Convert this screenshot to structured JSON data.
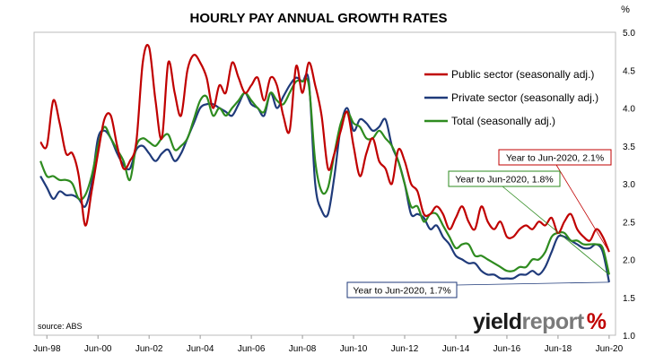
{
  "chart_data": {
    "type": "line",
    "title": "HOURLY PAY ANNUAL GROWTH RATES",
    "y_unit": "%",
    "source": "source: ABS",
    "logo": {
      "text_dark": "yield",
      "text_light": "report",
      "symbol": "%"
    },
    "xlim": [
      1998.0,
      2020.75
    ],
    "ylim": [
      1.0,
      5.0
    ],
    "x_ticks": [
      {
        "x": 1998.5,
        "label": "Jun-98"
      },
      {
        "x": 2000.5,
        "label": "Jun-00"
      },
      {
        "x": 2002.5,
        "label": "Jun-02"
      },
      {
        "x": 2004.5,
        "label": "Jun-04"
      },
      {
        "x": 2006.5,
        "label": "Jun-06"
      },
      {
        "x": 2008.5,
        "label": "Jun-08"
      },
      {
        "x": 2010.5,
        "label": "Jun-10"
      },
      {
        "x": 2012.5,
        "label": "Jun-12"
      },
      {
        "x": 2014.5,
        "label": "Jun-14"
      },
      {
        "x": 2016.5,
        "label": "Jun-16"
      },
      {
        "x": 2018.5,
        "label": "Jun-18"
      },
      {
        "x": 2020.5,
        "label": "Jun-20"
      }
    ],
    "y_ticks": [
      {
        "y": 1.0,
        "label": "1.0"
      },
      {
        "y": 1.5,
        "label": "1.5"
      },
      {
        "y": 2.0,
        "label": "2.0"
      },
      {
        "y": 2.5,
        "label": "2.5"
      },
      {
        "y": 3.0,
        "label": "3.0"
      },
      {
        "y": 3.5,
        "label": "3.5"
      },
      {
        "y": 4.0,
        "label": "4.0"
      },
      {
        "y": 4.5,
        "label": "4.5"
      },
      {
        "y": 5.0,
        "label": "5.0"
      }
    ],
    "grid": false,
    "legend_position": "top-right",
    "series": [
      {
        "name": "Public sector (seasonally adj.)",
        "color": "#c00000",
        "x": [
          1998.25,
          1998.5,
          1998.75,
          1999.0,
          1999.25,
          1999.5,
          1999.75,
          2000.0,
          2000.25,
          2000.5,
          2000.75,
          2001.0,
          2001.25,
          2001.5,
          2001.75,
          2002.0,
          2002.25,
          2002.5,
          2002.75,
          2003.0,
          2003.25,
          2003.5,
          2003.75,
          2004.0,
          2004.25,
          2004.5,
          2004.75,
          2005.0,
          2005.25,
          2005.5,
          2005.75,
          2006.0,
          2006.25,
          2006.5,
          2006.75,
          2007.0,
          2007.25,
          2007.5,
          2007.75,
          2008.0,
          2008.25,
          2008.5,
          2008.75,
          2009.0,
          2009.25,
          2009.5,
          2009.75,
          2010.0,
          2010.25,
          2010.5,
          2010.75,
          2011.0,
          2011.25,
          2011.5,
          2011.75,
          2012.0,
          2012.25,
          2012.5,
          2012.75,
          2013.0,
          2013.25,
          2013.5,
          2013.75,
          2014.0,
          2014.25,
          2014.5,
          2014.75,
          2015.0,
          2015.25,
          2015.5,
          2015.75,
          2016.0,
          2016.25,
          2016.5,
          2016.75,
          2017.0,
          2017.25,
          2017.5,
          2017.75,
          2018.0,
          2018.25,
          2018.5,
          2018.75,
          2019.0,
          2019.25,
          2019.5,
          2019.75,
          2020.0,
          2020.25,
          2020.5
        ],
        "y": [
          3.55,
          3.5,
          4.1,
          3.8,
          3.4,
          3.4,
          3.1,
          2.45,
          2.9,
          3.4,
          3.85,
          3.9,
          3.5,
          3.2,
          3.3,
          3.55,
          4.6,
          4.8,
          4.1,
          3.6,
          4.6,
          4.2,
          3.9,
          4.5,
          4.7,
          4.6,
          4.4,
          4.0,
          4.3,
          4.2,
          4.6,
          4.4,
          4.2,
          4.3,
          4.4,
          4.1,
          4.4,
          4.3,
          3.9,
          3.7,
          4.55,
          4.2,
          4.6,
          4.3,
          3.9,
          3.2,
          3.4,
          3.7,
          3.95,
          3.5,
          3.1,
          3.4,
          3.6,
          3.3,
          3.2,
          3.0,
          3.45,
          3.3,
          3.0,
          2.9,
          2.6,
          2.6,
          2.7,
          2.6,
          2.4,
          2.55,
          2.7,
          2.5,
          2.4,
          2.7,
          2.5,
          2.4,
          2.5,
          2.3,
          2.3,
          2.4,
          2.45,
          2.4,
          2.5,
          2.45,
          2.55,
          2.35,
          2.5,
          2.6,
          2.4,
          2.3,
          2.25,
          2.4,
          2.3,
          2.1
        ]
      },
      {
        "name": "Private sector (seasonally adj.)",
        "color": "#1f3a7a",
        "x": [
          1998.25,
          1998.5,
          1998.75,
          1999.0,
          1999.25,
          1999.5,
          1999.75,
          2000.0,
          2000.25,
          2000.5,
          2000.75,
          2001.0,
          2001.25,
          2001.5,
          2001.75,
          2002.0,
          2002.25,
          2002.5,
          2002.75,
          2003.0,
          2003.25,
          2003.5,
          2003.75,
          2004.0,
          2004.25,
          2004.5,
          2004.75,
          2005.0,
          2005.25,
          2005.5,
          2005.75,
          2006.0,
          2006.25,
          2006.5,
          2006.75,
          2007.0,
          2007.25,
          2007.5,
          2007.75,
          2008.0,
          2008.25,
          2008.5,
          2008.75,
          2009.0,
          2009.25,
          2009.5,
          2009.75,
          2010.0,
          2010.25,
          2010.5,
          2010.75,
          2011.0,
          2011.25,
          2011.5,
          2011.75,
          2012.0,
          2012.25,
          2012.5,
          2012.75,
          2013.0,
          2013.25,
          2013.5,
          2013.75,
          2014.0,
          2014.25,
          2014.5,
          2014.75,
          2015.0,
          2015.25,
          2015.5,
          2015.75,
          2016.0,
          2016.25,
          2016.5,
          2016.75,
          2017.0,
          2017.25,
          2017.5,
          2017.75,
          2018.0,
          2018.25,
          2018.5,
          2018.75,
          2019.0,
          2019.25,
          2019.5,
          2019.75,
          2020.0,
          2020.25,
          2020.5
        ],
        "y": [
          3.1,
          2.95,
          2.8,
          2.9,
          2.85,
          2.85,
          2.8,
          2.7,
          3.0,
          3.6,
          3.7,
          3.6,
          3.4,
          3.25,
          3.2,
          3.45,
          3.5,
          3.4,
          3.3,
          3.4,
          3.45,
          3.3,
          3.4,
          3.6,
          3.8,
          4.0,
          4.05,
          4.05,
          4.0,
          3.95,
          3.9,
          4.05,
          4.2,
          4.05,
          4.0,
          3.9,
          4.2,
          4.0,
          4.15,
          4.3,
          4.4,
          4.35,
          4.35,
          3.0,
          2.65,
          2.6,
          3.1,
          3.75,
          4.0,
          3.7,
          3.85,
          3.8,
          3.7,
          3.75,
          3.85,
          3.5,
          3.3,
          3.0,
          2.6,
          2.6,
          2.55,
          2.4,
          2.45,
          2.3,
          2.2,
          2.05,
          2.0,
          1.95,
          1.95,
          1.85,
          1.8,
          1.8,
          1.75,
          1.75,
          1.75,
          1.8,
          1.8,
          1.85,
          1.8,
          1.9,
          2.1,
          2.3,
          2.3,
          2.25,
          2.2,
          2.15,
          2.15,
          2.2,
          2.1,
          1.7
        ]
      },
      {
        "name": "Total (seasonally adj.)",
        "color": "#2e8b1f",
        "x": [
          1998.25,
          1998.5,
          1998.75,
          1999.0,
          1999.25,
          1999.5,
          1999.75,
          2000.0,
          2000.25,
          2000.5,
          2000.75,
          2001.0,
          2001.25,
          2001.5,
          2001.75,
          2002.0,
          2002.25,
          2002.5,
          2002.75,
          2003.0,
          2003.25,
          2003.5,
          2003.75,
          2004.0,
          2004.25,
          2004.5,
          2004.75,
          2005.0,
          2005.25,
          2005.5,
          2005.75,
          2006.0,
          2006.25,
          2006.5,
          2006.75,
          2007.0,
          2007.25,
          2007.5,
          2007.75,
          2008.0,
          2008.25,
          2008.5,
          2008.75,
          2009.0,
          2009.25,
          2009.5,
          2009.75,
          2010.0,
          2010.25,
          2010.5,
          2010.75,
          2011.0,
          2011.25,
          2011.5,
          2011.75,
          2012.0,
          2012.25,
          2012.5,
          2012.75,
          2013.0,
          2013.25,
          2013.5,
          2013.75,
          2014.0,
          2014.25,
          2014.5,
          2014.75,
          2015.0,
          2015.25,
          2015.5,
          2015.75,
          2016.0,
          2016.25,
          2016.5,
          2016.75,
          2017.0,
          2017.25,
          2017.5,
          2017.75,
          2018.0,
          2018.25,
          2018.5,
          2018.75,
          2019.0,
          2019.25,
          2019.5,
          2019.75,
          2020.0,
          2020.25,
          2020.5
        ],
        "y": [
          3.3,
          3.1,
          3.1,
          3.05,
          3.05,
          3.0,
          2.8,
          2.85,
          3.1,
          3.5,
          3.75,
          3.6,
          3.45,
          3.3,
          3.05,
          3.5,
          3.6,
          3.55,
          3.5,
          3.6,
          3.65,
          3.45,
          3.5,
          3.6,
          3.85,
          4.1,
          4.15,
          3.9,
          4.0,
          3.9,
          4.0,
          4.1,
          4.2,
          4.1,
          4.0,
          3.95,
          4.2,
          4.1,
          4.05,
          4.2,
          4.35,
          4.35,
          4.3,
          3.3,
          2.9,
          2.95,
          3.4,
          3.8,
          3.95,
          3.8,
          3.75,
          3.6,
          3.6,
          3.7,
          3.6,
          3.5,
          3.3,
          3.0,
          2.7,
          2.7,
          2.5,
          2.6,
          2.6,
          2.45,
          2.3,
          2.15,
          2.2,
          2.2,
          2.05,
          2.05,
          2.0,
          1.95,
          1.9,
          1.85,
          1.85,
          1.9,
          1.9,
          2.0,
          2.0,
          2.1,
          2.3,
          2.35,
          2.35,
          2.25,
          2.25,
          2.2,
          2.2,
          2.2,
          2.15,
          1.8
        ]
      }
    ],
    "annotations": [
      {
        "text": "Year to Jun-2020, 2.1%",
        "color": "#c00000",
        "target": [
          2020.5,
          2.1
        ]
      },
      {
        "text": "Year to Jun-2020, 1.8%",
        "color": "#2e8b1f",
        "target": [
          2020.5,
          1.8
        ]
      },
      {
        "text": "Year to Jun-2020, 1.7%",
        "color": "#1f3a7a",
        "target": [
          2020.5,
          1.7
        ]
      }
    ]
  }
}
